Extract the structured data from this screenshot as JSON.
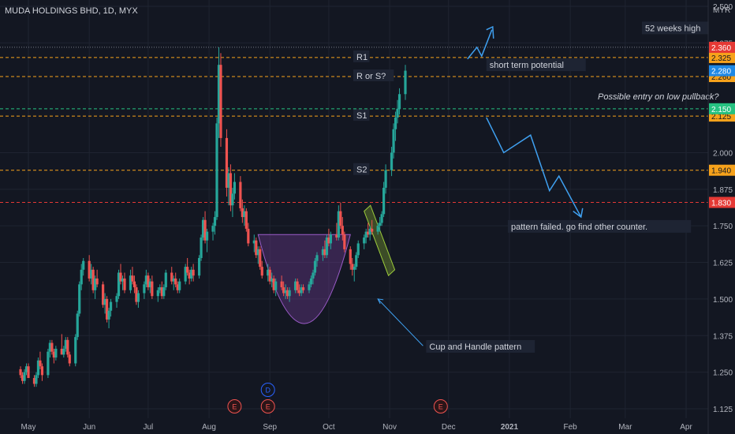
{
  "header": {
    "title": "MUDA HOLDINGS BHD, 1D, MYX"
  },
  "colors": {
    "background": "#131722",
    "grid": "#1f2431",
    "up": "#26a69a",
    "down": "#ef5350",
    "resistance": "#f7a21b",
    "support_green": "#26c281",
    "red_level": "#e53935",
    "cup_fill": "#7b3fa0",
    "cup_stroke": "#9c5cc9",
    "handle_fill": "#6f8f2e",
    "arrow": "#3fa0f0",
    "tag_blue": "#1e88e5",
    "tag_text": "#d1d4dc"
  },
  "chart_data": {
    "type": "candlestick",
    "title": "MUDA HOLDINGS BHD, 1D, MYX",
    "ylabel": "MYR",
    "ylim": [
      1.08,
      2.5
    ],
    "yticks": [
      "2.500",
      "2.375",
      "2.000",
      "1.875",
      "1.750",
      "1.625",
      "1.500",
      "1.375",
      "1.250",
      "1.125"
    ],
    "x_ticks": [
      "May",
      "Jun",
      "Jul",
      "Aug",
      "Sep",
      "Oct",
      "Nov",
      "Dec",
      "2021",
      "Feb",
      "Mar",
      "Apr"
    ],
    "levels": [
      {
        "label": "R1",
        "price": 2.325,
        "tag": "2.325",
        "color": "resistance"
      },
      {
        "label": "R or S?",
        "price": 2.26,
        "tag": "2.260",
        "color": "resistance"
      },
      {
        "label": "S1",
        "price": 2.125,
        "tag": "2.125",
        "color": "resistance"
      },
      {
        "label": "S2",
        "price": 1.94,
        "tag": "1.940",
        "color": "resistance"
      },
      {
        "label": "",
        "price": 2.15,
        "tag": "2.150",
        "color": "support_green"
      },
      {
        "label": "",
        "price": 1.83,
        "tag": "1.830",
        "color": "red_level"
      }
    ],
    "price_tags": [
      {
        "price": 2.36,
        "tag": "2.360",
        "color": "red_level"
      },
      {
        "price": 2.28,
        "tag": "2.280",
        "color": "tag_blue"
      }
    ],
    "reference_line": {
      "price": 2.36
    },
    "candles": {
      "start": "2020-04-27",
      "ohlc": [
        [
          1.26,
          1.27,
          1.23,
          1.24
        ],
        [
          1.24,
          1.25,
          1.21,
          1.22
        ],
        [
          1.22,
          1.26,
          1.21,
          1.25
        ],
        [
          1.25,
          1.28,
          1.24,
          1.27
        ],
        [
          1.27,
          1.28,
          1.23,
          1.23
        ],
        [
          1.23,
          1.24,
          1.2,
          1.21
        ],
        [
          1.21,
          1.25,
          1.2,
          1.24
        ],
        [
          1.24,
          1.3,
          1.23,
          1.29
        ],
        [
          1.29,
          1.32,
          1.26,
          1.27
        ],
        [
          1.27,
          1.28,
          1.22,
          1.24
        ],
        [
          1.24,
          1.33,
          1.23,
          1.32
        ],
        [
          1.32,
          1.36,
          1.3,
          1.35
        ],
        [
          1.35,
          1.36,
          1.31,
          1.32
        ],
        [
          1.32,
          1.33,
          1.28,
          1.3
        ],
        [
          1.3,
          1.34,
          1.29,
          1.33
        ],
        [
          1.33,
          1.38,
          1.31,
          1.31
        ],
        [
          1.31,
          1.34,
          1.3,
          1.33
        ],
        [
          1.33,
          1.37,
          1.32,
          1.36
        ],
        [
          1.36,
          1.37,
          1.3,
          1.31
        ],
        [
          1.31,
          1.32,
          1.27,
          1.28
        ],
        [
          1.28,
          1.38,
          1.27,
          1.37
        ],
        [
          1.37,
          1.46,
          1.36,
          1.45
        ],
        [
          1.45,
          1.56,
          1.44,
          1.55
        ],
        [
          1.55,
          1.62,
          1.53,
          1.6
        ],
        [
          1.6,
          1.64,
          1.58,
          1.63
        ],
        [
          1.63,
          1.65,
          1.56,
          1.57
        ],
        [
          1.57,
          1.62,
          1.55,
          1.6
        ],
        [
          1.6,
          1.61,
          1.52,
          1.53
        ],
        [
          1.53,
          1.58,
          1.5,
          1.57
        ],
        [
          1.57,
          1.6,
          1.54,
          1.55
        ],
        [
          1.55,
          1.56,
          1.47,
          1.48
        ],
        [
          1.48,
          1.52,
          1.45,
          1.5
        ],
        [
          1.5,
          1.51,
          1.42,
          1.43
        ],
        [
          1.43,
          1.47,
          1.4,
          1.46
        ],
        [
          1.46,
          1.5,
          1.44,
          1.49
        ],
        [
          1.49,
          1.52,
          1.47,
          1.51
        ],
        [
          1.51,
          1.6,
          1.5,
          1.59
        ],
        [
          1.59,
          1.62,
          1.55,
          1.56
        ],
        [
          1.56,
          1.58,
          1.53,
          1.57
        ],
        [
          1.57,
          1.59,
          1.52,
          1.53
        ],
        [
          1.53,
          1.6,
          1.52,
          1.58
        ],
        [
          1.58,
          1.61,
          1.55,
          1.56
        ],
        [
          1.56,
          1.58,
          1.52,
          1.54
        ],
        [
          1.54,
          1.55,
          1.48,
          1.49
        ],
        [
          1.49,
          1.53,
          1.47,
          1.52
        ],
        [
          1.52,
          1.56,
          1.5,
          1.55
        ],
        [
          1.55,
          1.6,
          1.54,
          1.58
        ],
        [
          1.58,
          1.59,
          1.53,
          1.54
        ],
        [
          1.54,
          1.57,
          1.52,
          1.56
        ],
        [
          1.56,
          1.58,
          1.5,
          1.51
        ],
        [
          1.51,
          1.54,
          1.49,
          1.53
        ],
        [
          1.53,
          1.55,
          1.52,
          1.54
        ],
        [
          1.54,
          1.56,
          1.5,
          1.51
        ],
        [
          1.51,
          1.55,
          1.5,
          1.54
        ],
        [
          1.54,
          1.6,
          1.53,
          1.59
        ],
        [
          1.59,
          1.61,
          1.55,
          1.56
        ],
        [
          1.56,
          1.58,
          1.53,
          1.57
        ],
        [
          1.57,
          1.59,
          1.54,
          1.55
        ],
        [
          1.55,
          1.56,
          1.52,
          1.53
        ],
        [
          1.53,
          1.57,
          1.52,
          1.56
        ],
        [
          1.56,
          1.62,
          1.55,
          1.61
        ],
        [
          1.61,
          1.64,
          1.58,
          1.59
        ],
        [
          1.59,
          1.6,
          1.55,
          1.57
        ],
        [
          1.57,
          1.61,
          1.56,
          1.6
        ],
        [
          1.6,
          1.62,
          1.56,
          1.58
        ],
        [
          1.58,
          1.65,
          1.57,
          1.64
        ],
        [
          1.64,
          1.72,
          1.63,
          1.71
        ],
        [
          1.71,
          1.78,
          1.7,
          1.77
        ],
        [
          1.77,
          1.8,
          1.69,
          1.7
        ],
        [
          1.7,
          1.74,
          1.66,
          1.73
        ],
        [
          1.73,
          1.76,
          1.7,
          1.75
        ],
        [
          1.75,
          1.8,
          1.72,
          1.78
        ],
        [
          1.78,
          2.12,
          1.77,
          2.1
        ],
        [
          2.1,
          2.36,
          2.05,
          2.3
        ],
        [
          2.3,
          2.34,
          2.02,
          2.05
        ],
        [
          2.05,
          2.08,
          1.85,
          1.88
        ],
        [
          1.88,
          1.95,
          1.82,
          1.93
        ],
        [
          1.93,
          1.96,
          1.8,
          1.82
        ],
        [
          1.82,
          1.88,
          1.78,
          1.86
        ],
        [
          1.86,
          1.93,
          1.84,
          1.9
        ],
        [
          1.9,
          1.92,
          1.8,
          1.81
        ],
        [
          1.81,
          1.84,
          1.76,
          1.78
        ],
        [
          1.78,
          1.82,
          1.75,
          1.8
        ],
        [
          1.8,
          1.81,
          1.73,
          1.74
        ],
        [
          1.74,
          1.76,
          1.68,
          1.69
        ],
        [
          1.69,
          1.72,
          1.66,
          1.7
        ],
        [
          1.7,
          1.71,
          1.64,
          1.65
        ],
        [
          1.65,
          1.68,
          1.62,
          1.67
        ],
        [
          1.67,
          1.68,
          1.6,
          1.61
        ],
        [
          1.61,
          1.63,
          1.57,
          1.58
        ],
        [
          1.58,
          1.62,
          1.56,
          1.6
        ],
        [
          1.6,
          1.61,
          1.55,
          1.56
        ],
        [
          1.56,
          1.59,
          1.54,
          1.57
        ],
        [
          1.57,
          1.58,
          1.52,
          1.53
        ],
        [
          1.53,
          1.57,
          1.51,
          1.56
        ],
        [
          1.56,
          1.58,
          1.53,
          1.54
        ],
        [
          1.54,
          1.56,
          1.51,
          1.52
        ],
        [
          1.52,
          1.55,
          1.5,
          1.53
        ],
        [
          1.53,
          1.54,
          1.5,
          1.51
        ],
        [
          1.51,
          1.54,
          1.49,
          1.53
        ],
        [
          1.53,
          1.57,
          1.52,
          1.56
        ],
        [
          1.56,
          1.57,
          1.52,
          1.53
        ],
        [
          1.53,
          1.55,
          1.51,
          1.52
        ],
        [
          1.52,
          1.55,
          1.51,
          1.54
        ],
        [
          1.54,
          1.55,
          1.52,
          1.53
        ],
        [
          1.53,
          1.56,
          1.52,
          1.55
        ],
        [
          1.55,
          1.58,
          1.54,
          1.57
        ],
        [
          1.57,
          1.6,
          1.55,
          1.59
        ],
        [
          1.59,
          1.64,
          1.58,
          1.63
        ],
        [
          1.63,
          1.66,
          1.61,
          1.65
        ],
        [
          1.65,
          1.68,
          1.63,
          1.67
        ],
        [
          1.67,
          1.7,
          1.64,
          1.65
        ],
        [
          1.65,
          1.72,
          1.64,
          1.71
        ],
        [
          1.71,
          1.74,
          1.68,
          1.69
        ],
        [
          1.69,
          1.73,
          1.67,
          1.72
        ],
        [
          1.72,
          1.76,
          1.7,
          1.71
        ],
        [
          1.71,
          1.82,
          1.7,
          1.8
        ],
        [
          1.8,
          1.83,
          1.74,
          1.75
        ],
        [
          1.75,
          1.78,
          1.7,
          1.72
        ],
        [
          1.72,
          1.73,
          1.66,
          1.67
        ],
        [
          1.67,
          1.68,
          1.6,
          1.62
        ],
        [
          1.62,
          1.64,
          1.58,
          1.6
        ],
        [
          1.6,
          1.62,
          1.56,
          1.61
        ],
        [
          1.61,
          1.66,
          1.6,
          1.65
        ],
        [
          1.65,
          1.7,
          1.64,
          1.69
        ],
        [
          1.69,
          1.72,
          1.67,
          1.71
        ],
        [
          1.71,
          1.74,
          1.69,
          1.73
        ],
        [
          1.73,
          1.76,
          1.71,
          1.72
        ],
        [
          1.72,
          1.75,
          1.7,
          1.74
        ],
        [
          1.74,
          1.77,
          1.72,
          1.73
        ],
        [
          1.73,
          1.76,
          1.72,
          1.75
        ],
        [
          1.75,
          1.78,
          1.73,
          1.76
        ],
        [
          1.76,
          1.8,
          1.75,
          1.79
        ],
        [
          1.79,
          1.9,
          1.78,
          1.88
        ],
        [
          1.88,
          1.96,
          1.86,
          1.94
        ],
        [
          1.94,
          2.02,
          1.92,
          2.0
        ],
        [
          2.0,
          2.1,
          1.98,
          2.08
        ],
        [
          2.08,
          2.14,
          2.04,
          2.12
        ],
        [
          2.12,
          2.18,
          2.1,
          2.15
        ],
        [
          2.15,
          2.22,
          2.13,
          2.2
        ],
        [
          2.2,
          2.3,
          2.18,
          2.28
        ]
      ]
    },
    "annotations": [
      {
        "text": "52 weeks high"
      },
      {
        "text": "short term potential"
      },
      {
        "text": "Possible entry on low pullback?"
      },
      {
        "text": "pattern failed. go find other counter."
      },
      {
        "text": "Cup and Handle pattern"
      }
    ],
    "event_markers": [
      {
        "label": "E",
        "date": "2020-08-14"
      },
      {
        "label": "E",
        "date": "2020-08-31"
      },
      {
        "label": "D",
        "date": "2020-08-31"
      },
      {
        "label": "E",
        "date": "2020-11-27"
      }
    ]
  }
}
